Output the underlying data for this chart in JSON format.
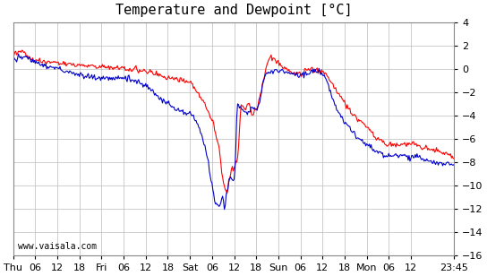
{
  "title": "Temperature and Dewpoint [°C]",
  "ylabel": "",
  "watermark": "www.vaisala.com",
  "line_color_temp": "#ff0000",
  "line_color_dew": "#0000cc",
  "background_color": "#ffffff",
  "grid_color": "#bbbbbb",
  "ylim": [
    -16,
    4
  ],
  "yticks": [
    -16,
    -14,
    -12,
    -10,
    -8,
    -6,
    -4,
    -2,
    0,
    2,
    4
  ],
  "xtick_labels": [
    "Thu",
    "06",
    "12",
    "18",
    "Fri",
    "06",
    "12",
    "18",
    "Sat",
    "06",
    "12",
    "18",
    "Sun",
    "06",
    "12",
    "18",
    "Mon",
    "06",
    "12",
    "23:45"
  ],
  "n_points": 500,
  "title_fontsize": 11,
  "tick_fontsize": 8,
  "watermark_fontsize": 7,
  "line_width": 0.8
}
